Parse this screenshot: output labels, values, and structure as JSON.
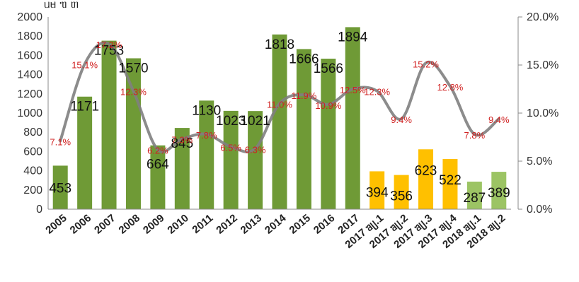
{
  "title": "ᥙᥛ ᥓ ᥖ",
  "chart_data": {
    "type": "bar",
    "categories": [
      "2005",
      "2006",
      "2007",
      "2008",
      "2009",
      "2010",
      "2011",
      "2012",
      "2013",
      "2014",
      "2015",
      "2016",
      "2017",
      "2017 ᥑᥩ.1",
      "2017 ᥑᥩ.2",
      "2017 ᥑᥩ.3",
      "2017 ᥑᥩ.4",
      "2018 ᥑᥩ.1",
      "2018 ᥑᥩ.2"
    ],
    "series": [
      {
        "values": [
          453,
          1171,
          1753,
          1570,
          664,
          845,
          1130,
          1023,
          1021,
          1818,
          1666,
          1566,
          1894,
          394,
          356,
          623,
          522,
          287,
          389
        ],
        "value_labels": [
          "453",
          "1171",
          "1753",
          "1570",
          "664",
          "845",
          "1130",
          "1023",
          "1021",
          "1818",
          "1666",
          "1566",
          "1894",
          "394",
          "356",
          "623",
          "522",
          "287",
          "389"
        ],
        "colors": [
          "#6f9a36",
          "#6f9a36",
          "#6f9a36",
          "#6f9a36",
          "#6f9a36",
          "#6f9a36",
          "#6f9a36",
          "#6f9a36",
          "#6f9a36",
          "#6f9a36",
          "#6f9a36",
          "#6f9a36",
          "#6f9a36",
          "#ffc000",
          "#ffc000",
          "#ffc000",
          "#ffc000",
          "#9cc464",
          "#9cc464"
        ]
      },
      {
        "type": "line",
        "axis": "right",
        "values": [
          7.1,
          15.1,
          17.2,
          12.3,
          6.2,
          7.3,
          7.8,
          6.5,
          6.3,
          11.0,
          11.9,
          10.9,
          12.5,
          12.3,
          9.4,
          15.2,
          12.8,
          7.8,
          9.4
        ],
        "value_labels": [
          "7.1%",
          "15.1%",
          "17.2%",
          "12.3%",
          "6.2%",
          "7.3%",
          "7.8%",
          "6.5%",
          "6.3%",
          "11.0%",
          "11.9%",
          "10.9%",
          "12.5%",
          "12.3%",
          "9.4%",
          "15.2%",
          "12.8%",
          "7.8%",
          "9.4%"
        ],
        "color": "#7f7f7f"
      }
    ],
    "left_axis": {
      "ylim": [
        0,
        2000
      ],
      "ticks": [
        "0",
        "200",
        "400",
        "600",
        "800",
        "1000",
        "1200",
        "1400",
        "1600",
        "1800",
        "2000"
      ]
    },
    "right_axis": {
      "ylim": [
        0,
        20
      ],
      "ticks": [
        "0.0%",
        "5.0%",
        "10.0%",
        "15.0%",
        "20.0%"
      ]
    },
    "grid": false,
    "legend": "none"
  }
}
